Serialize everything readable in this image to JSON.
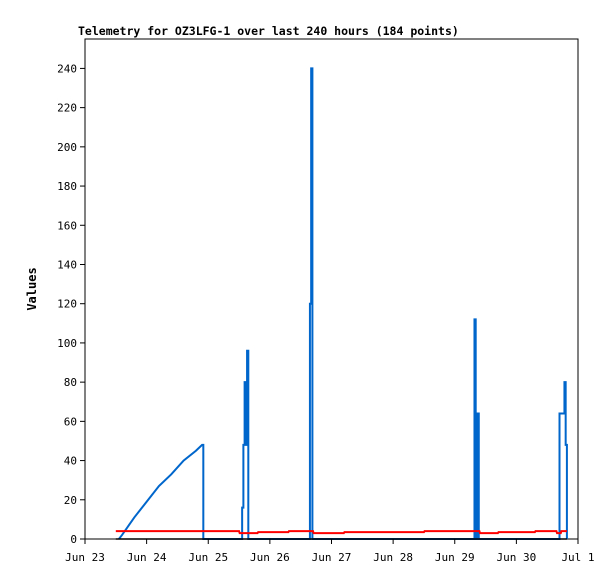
{
  "chart_data": {
    "type": "line",
    "title": "Telemetry for OZ3LFG-1 over last 240 hours (184 points)",
    "xlabel": "",
    "ylabel": "Values",
    "xlim": [
      "Jun 23",
      "Jul 1"
    ],
    "ylim": [
      0,
      255
    ],
    "x_ticks": [
      "Jun 23",
      "Jun 24",
      "Jun 25",
      "Jun 26",
      "Jun 27",
      "Jun 28",
      "Jun 29",
      "Jun 30",
      "Jul 1"
    ],
    "y_ticks": [
      0,
      20,
      40,
      60,
      80,
      100,
      120,
      140,
      160,
      180,
      200,
      220,
      240
    ],
    "grid": false,
    "legend": "none",
    "series": [
      {
        "color": "#0066cc",
        "points": [
          [
            0.55,
            0
          ],
          [
            0.6,
            2
          ],
          [
            0.8,
            11
          ],
          [
            1.0,
            19
          ],
          [
            1.2,
            27
          ],
          [
            1.4,
            33
          ],
          [
            1.6,
            40
          ],
          [
            1.8,
            45
          ],
          [
            1.9,
            48
          ],
          [
            1.92,
            48
          ],
          [
            1.92,
            0
          ],
          [
            2.55,
            0
          ],
          [
            2.55,
            16
          ],
          [
            2.57,
            16
          ],
          [
            2.57,
            48
          ],
          [
            2.59,
            48
          ],
          [
            2.59,
            80
          ],
          [
            2.61,
            80
          ],
          [
            2.61,
            48
          ],
          [
            2.63,
            48
          ],
          [
            2.63,
            96
          ],
          [
            2.65,
            96
          ],
          [
            2.65,
            0
          ],
          [
            3.65,
            0
          ],
          [
            3.65,
            120
          ],
          [
            3.67,
            120
          ],
          [
            3.67,
            240
          ],
          [
            3.69,
            240
          ],
          [
            3.69,
            0
          ],
          [
            6.32,
            0
          ],
          [
            6.32,
            112
          ],
          [
            6.34,
            112
          ],
          [
            6.34,
            0
          ],
          [
            6.37,
            0
          ],
          [
            6.37,
            64
          ],
          [
            6.39,
            64
          ],
          [
            6.39,
            0
          ],
          [
            7.7,
            0
          ],
          [
            7.7,
            64
          ],
          [
            7.78,
            64
          ],
          [
            7.78,
            80
          ],
          [
            7.8,
            80
          ],
          [
            7.8,
            48
          ],
          [
            7.82,
            48
          ],
          [
            7.82,
            0
          ]
        ]
      },
      {
        "color": "#ff0000",
        "points": [
          [
            0.5,
            4
          ],
          [
            1.0,
            4
          ],
          [
            2.5,
            4
          ],
          [
            2.51,
            3
          ],
          [
            2.8,
            3
          ],
          [
            2.81,
            3.5
          ],
          [
            3.3,
            3.5
          ],
          [
            3.31,
            4
          ],
          [
            3.7,
            4
          ],
          [
            3.71,
            3
          ],
          [
            4.2,
            3
          ],
          [
            4.21,
            3.5
          ],
          [
            5.5,
            3.5
          ],
          [
            5.51,
            4
          ],
          [
            6.4,
            4
          ],
          [
            6.41,
            3
          ],
          [
            6.7,
            3
          ],
          [
            6.71,
            3.5
          ],
          [
            7.3,
            3.5
          ],
          [
            7.31,
            4
          ],
          [
            7.65,
            4
          ],
          [
            7.66,
            3
          ],
          [
            7.72,
            3
          ],
          [
            7.73,
            4
          ],
          [
            7.82,
            4
          ]
        ]
      },
      {
        "color": "#000000",
        "points": [
          [
            0.5,
            0
          ],
          [
            7.82,
            0
          ]
        ]
      }
    ]
  }
}
